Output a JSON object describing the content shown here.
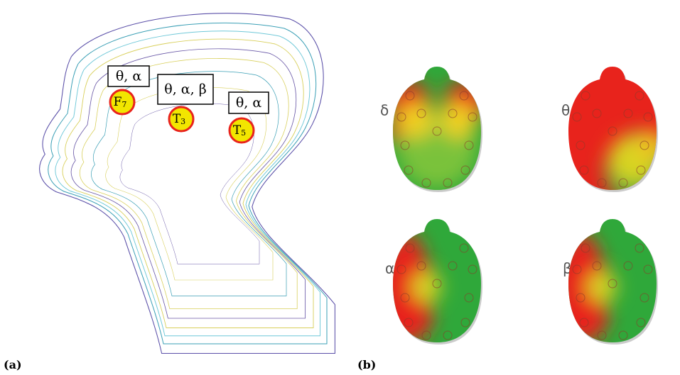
{
  "panels": {
    "a": {
      "label": "(a)",
      "electrodes": [
        {
          "letter": "F",
          "index": "7",
          "bands": "θ, α"
        },
        {
          "letter": "T",
          "index": "3",
          "bands": "θ, α, β"
        },
        {
          "letter": "T",
          "index": "5",
          "bands": "θ, α"
        }
      ]
    },
    "b": {
      "label": "(b)",
      "maps": [
        {
          "band": "δ"
        },
        {
          "band": "θ"
        },
        {
          "band": "α"
        },
        {
          "band": "β"
        }
      ]
    }
  }
}
